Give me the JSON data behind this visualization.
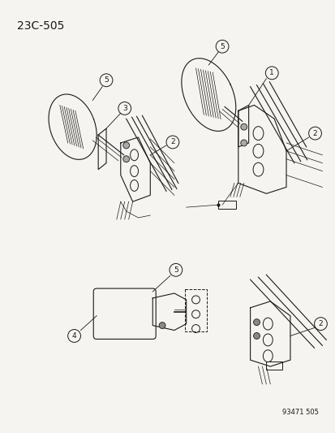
{
  "title_text": "23C-505",
  "bottom_label": "93471 505",
  "bg_color": "#f5f4f0",
  "line_color": "#1a1a1a",
  "title_fontsize": 10,
  "fig_width": 4.14,
  "fig_height": 5.33,
  "dpi": 100
}
